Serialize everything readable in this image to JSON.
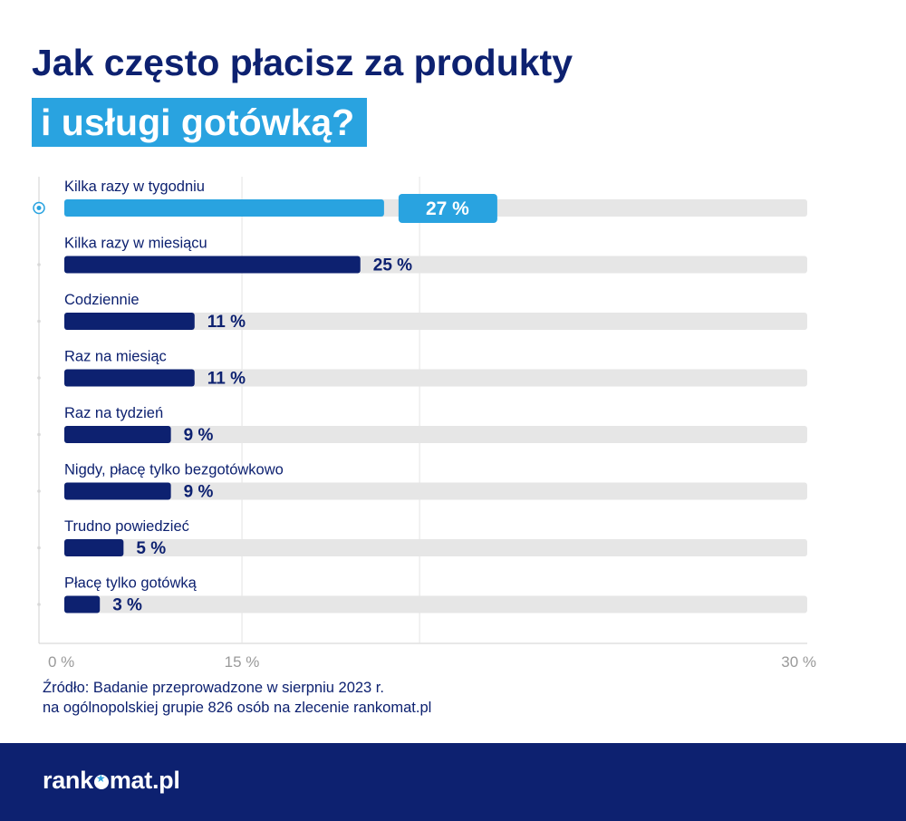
{
  "title": {
    "line1": "Jak często płacisz za produkty",
    "line2": "i usługi gotówką?"
  },
  "chart_data": {
    "type": "bar",
    "orientation": "horizontal",
    "categories": [
      "Kilka razy w tygodniu",
      "Kilka razy w miesiącu",
      "Codziennie",
      "Raz na miesiąc",
      "Raz na tydzień",
      "Nigdy, płacę tylko bezgotówkowo",
      "Trudno powiedzieć",
      "Płacę tylko gotówką"
    ],
    "values": [
      27,
      25,
      11,
      11,
      9,
      9,
      5,
      3
    ],
    "value_labels": [
      "27 %",
      "25 %",
      "11 %",
      "11 %",
      "9 %",
      "9 %",
      "5 %",
      "3 %"
    ],
    "xlim": [
      0,
      31.5
    ],
    "ticks": [
      {
        "value": 0,
        "label": "0 %"
      },
      {
        "value": 15,
        "label": "15 %"
      },
      {
        "value": 30,
        "label": "30 %"
      }
    ],
    "grid": true,
    "highlight_index": 0,
    "colors": {
      "bar": "#0d2170",
      "highlight": "#29a3e0",
      "track": "#e6e6e6",
      "grid": "#e4e4e4",
      "axis": "#d0d0d0"
    }
  },
  "source": {
    "line1": "Źródło: Badanie przeprowadzone w sierpniu 2023 r.",
    "line2": "na ogólnopolskiej grupie 826 osób na zlecenie rankomat.pl"
  },
  "footer": {
    "logo_left": "rank",
    "logo_right": "mat.pl",
    "logo_icon": "star-icon"
  }
}
